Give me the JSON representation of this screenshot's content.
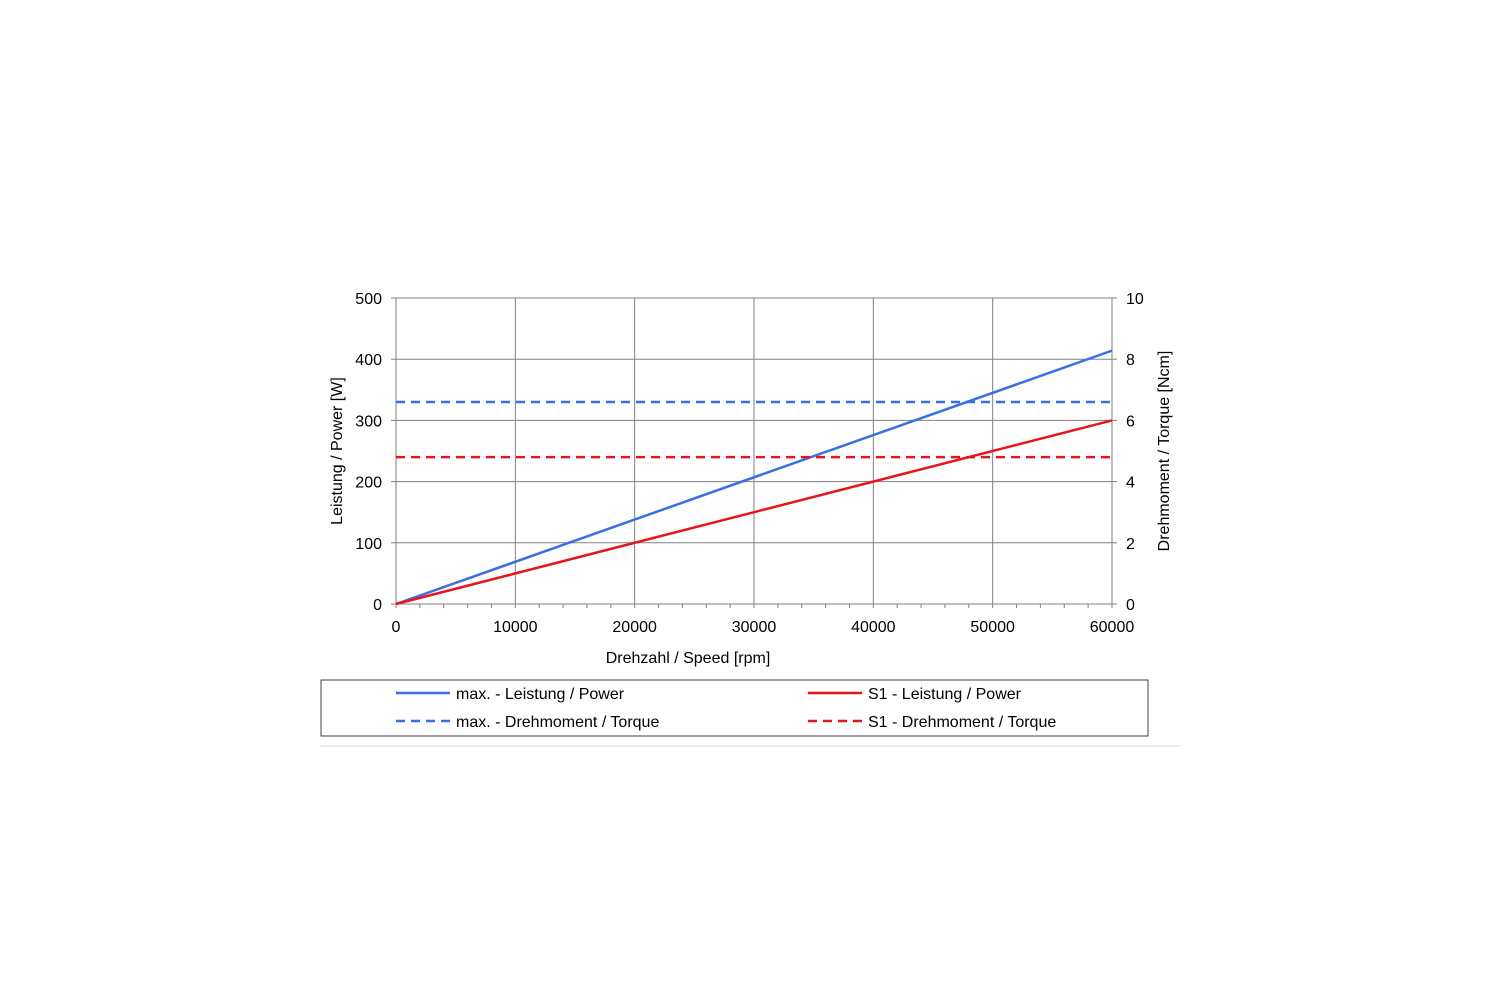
{
  "chart_data": {
    "type": "line",
    "xlabel": "Drehzahl / Speed [rpm]",
    "ylabel_left": "Leistung / Power [W]",
    "ylabel_right": "Drehmoment / Torque [Ncm]",
    "xlim": [
      0,
      60000
    ],
    "ylim_left": [
      0,
      500
    ],
    "ylim_right": [
      0,
      10
    ],
    "x_ticks": [
      0,
      10000,
      20000,
      30000,
      40000,
      50000,
      60000
    ],
    "y_left_ticks": [
      0,
      100,
      200,
      300,
      400,
      500
    ],
    "y_right_ticks": [
      0,
      2,
      4,
      6,
      8,
      10
    ],
    "x_tick_labels": [
      "0",
      "10000",
      "20000",
      "30000",
      "40000",
      "50000",
      "60000"
    ],
    "y_left_tick_labels": [
      "0",
      "100",
      "200",
      "300",
      "400",
      "500"
    ],
    "y_right_tick_labels": [
      "0",
      "2",
      "4",
      "6",
      "8",
      "10"
    ],
    "grid": true,
    "legend_position": "bottom",
    "series": [
      {
        "name": "max. - Leistung / Power",
        "axis": "left",
        "color": "#3a6ee8",
        "dash": false,
        "x": [
          0,
          60000
        ],
        "y": [
          0,
          414
        ]
      },
      {
        "name": "S1 - Leistung / Power",
        "axis": "left",
        "color": "#e8141a",
        "dash": false,
        "x": [
          0,
          60000
        ],
        "y": [
          0,
          300
        ]
      },
      {
        "name": "max. - Drehmoment / Torque",
        "axis": "right",
        "color": "#3a6ee8",
        "dash": true,
        "x": [
          0,
          60000
        ],
        "y": [
          6.6,
          6.6
        ]
      },
      {
        "name": "S1 - Drehmoment / Torque",
        "axis": "right",
        "color": "#e8141a",
        "dash": true,
        "x": [
          0,
          60000
        ],
        "y": [
          4.8,
          4.8
        ]
      }
    ]
  }
}
